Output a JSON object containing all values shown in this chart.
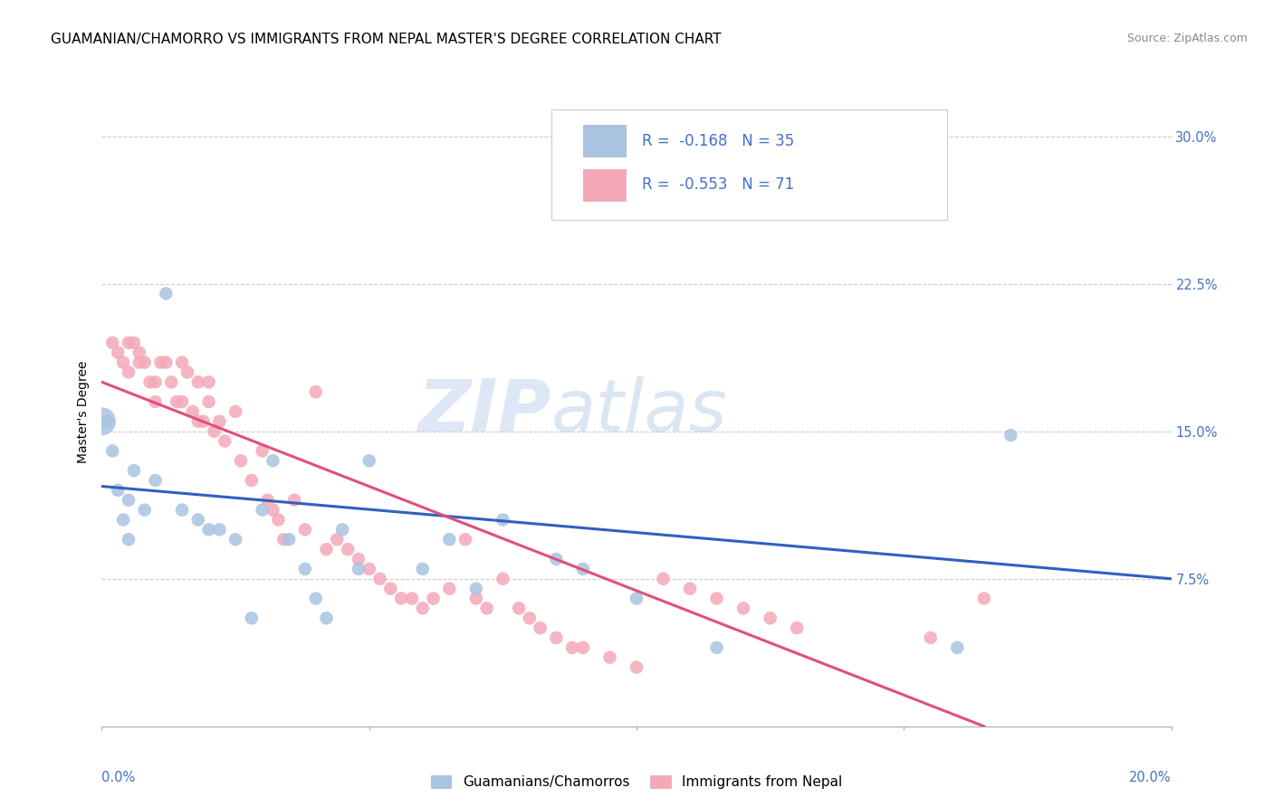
{
  "title": "GUAMANIAN/CHAMORRO VS IMMIGRANTS FROM NEPAL MASTER'S DEGREE CORRELATION CHART",
  "source": "Source: ZipAtlas.com",
  "ylabel": "Master's Degree",
  "yticks": [
    "7.5%",
    "15.0%",
    "22.5%",
    "30.0%"
  ],
  "ytick_vals": [
    0.075,
    0.15,
    0.225,
    0.3
  ],
  "xlim": [
    0.0,
    0.2
  ],
  "ylim": [
    0.0,
    0.32
  ],
  "blue_color": "#a8c4e0",
  "pink_color": "#f4a8b8",
  "blue_line_color": "#3060c0",
  "pink_line_color": "#e0507a",
  "legend_blue_r": "-0.168",
  "legend_blue_n": "35",
  "legend_pink_r": "-0.553",
  "legend_pink_n": "71",
  "legend_label_blue": "Guamanians/Chamorros",
  "legend_label_pink": "Immigrants from Nepal",
  "watermark_zip": "ZIP",
  "watermark_atlas": "atlas",
  "blue_scatter_x": [
    0.001,
    0.002,
    0.003,
    0.004,
    0.005,
    0.006,
    0.008,
    0.01,
    0.012,
    0.015,
    0.018,
    0.02,
    0.022,
    0.025,
    0.028,
    0.03,
    0.032,
    0.035,
    0.038,
    0.04,
    0.042,
    0.045,
    0.048,
    0.05,
    0.06,
    0.065,
    0.07,
    0.075,
    0.085,
    0.09,
    0.1,
    0.115,
    0.16,
    0.17,
    0.005
  ],
  "blue_scatter_y": [
    0.155,
    0.14,
    0.12,
    0.105,
    0.115,
    0.13,
    0.11,
    0.125,
    0.22,
    0.11,
    0.105,
    0.1,
    0.1,
    0.095,
    0.055,
    0.11,
    0.135,
    0.095,
    0.08,
    0.065,
    0.055,
    0.1,
    0.08,
    0.135,
    0.08,
    0.095,
    0.07,
    0.105,
    0.085,
    0.08,
    0.065,
    0.04,
    0.04,
    0.148,
    0.095
  ],
  "blue_large_x": [
    0.0
  ],
  "blue_large_y": [
    0.155
  ],
  "pink_scatter_x": [
    0.002,
    0.003,
    0.004,
    0.005,
    0.005,
    0.006,
    0.007,
    0.007,
    0.008,
    0.009,
    0.01,
    0.01,
    0.011,
    0.012,
    0.013,
    0.014,
    0.015,
    0.015,
    0.016,
    0.017,
    0.018,
    0.018,
    0.019,
    0.02,
    0.02,
    0.021,
    0.022,
    0.023,
    0.025,
    0.026,
    0.028,
    0.03,
    0.031,
    0.032,
    0.033,
    0.034,
    0.036,
    0.038,
    0.04,
    0.042,
    0.044,
    0.046,
    0.048,
    0.05,
    0.052,
    0.054,
    0.056,
    0.058,
    0.06,
    0.062,
    0.065,
    0.068,
    0.07,
    0.072,
    0.075,
    0.078,
    0.08,
    0.082,
    0.085,
    0.088,
    0.09,
    0.095,
    0.1,
    0.105,
    0.11,
    0.115,
    0.12,
    0.125,
    0.13,
    0.155,
    0.165
  ],
  "pink_scatter_y": [
    0.195,
    0.19,
    0.185,
    0.195,
    0.18,
    0.195,
    0.19,
    0.185,
    0.185,
    0.175,
    0.175,
    0.165,
    0.185,
    0.185,
    0.175,
    0.165,
    0.185,
    0.165,
    0.18,
    0.16,
    0.175,
    0.155,
    0.155,
    0.165,
    0.175,
    0.15,
    0.155,
    0.145,
    0.16,
    0.135,
    0.125,
    0.14,
    0.115,
    0.11,
    0.105,
    0.095,
    0.115,
    0.1,
    0.17,
    0.09,
    0.095,
    0.09,
    0.085,
    0.08,
    0.075,
    0.07,
    0.065,
    0.065,
    0.06,
    0.065,
    0.07,
    0.095,
    0.065,
    0.06,
    0.075,
    0.06,
    0.055,
    0.05,
    0.045,
    0.04,
    0.04,
    0.035,
    0.03,
    0.075,
    0.07,
    0.065,
    0.06,
    0.055,
    0.05,
    0.045,
    0.065
  ],
  "blue_trendline_x": [
    0.0,
    0.2
  ],
  "blue_trendline_y": [
    0.122,
    0.075
  ],
  "pink_trendline_x": [
    0.0,
    0.165
  ],
  "pink_trendline_y": [
    0.175,
    0.0
  ],
  "title_fontsize": 11,
  "axis_fontsize": 10,
  "tick_fontsize": 10.5,
  "source_fontsize": 9
}
